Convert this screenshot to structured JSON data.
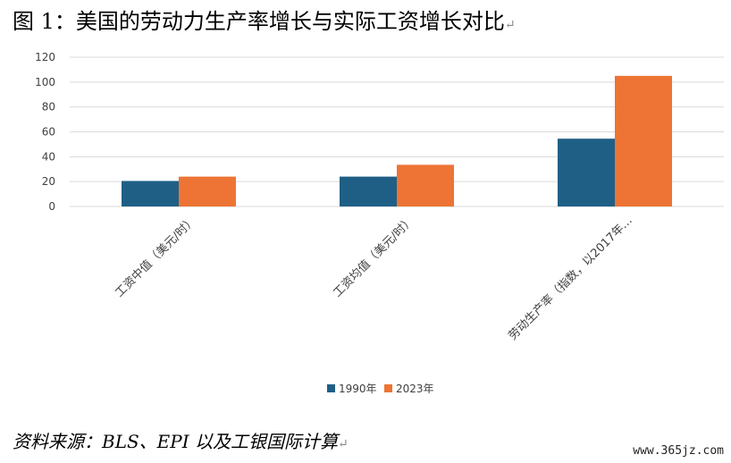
{
  "page": {
    "figure_title": "图 1：美国的劳动力生产率增长与实际工资增长对比",
    "paragraph_mark": "↵",
    "source": "资料来源：BLS、EPI 以及工银国际计算",
    "watermark": "www.365jz.com"
  },
  "colors": {
    "series_1990": "#1f5f86",
    "series_2023": "#ed7434",
    "grid": "#d9d9d9",
    "axis_text": "#404040"
  },
  "chart_data": {
    "type": "bar",
    "title": "",
    "xlabel": "",
    "ylabel": "",
    "categories": [
      "工资中值（美元/时）",
      "工资均值（美元/时）",
      "劳动生产率（指数，以2017年…"
    ],
    "series": [
      {
        "name": "1990年",
        "values": [
          20.5,
          24,
          54.5
        ]
      },
      {
        "name": "2023年",
        "values": [
          24,
          33.5,
          105
        ]
      }
    ],
    "ylim": [
      0,
      120
    ],
    "yticks": [
      0,
      20,
      40,
      60,
      80,
      100,
      120
    ],
    "grid": true,
    "legend_position": "bottom-center"
  }
}
